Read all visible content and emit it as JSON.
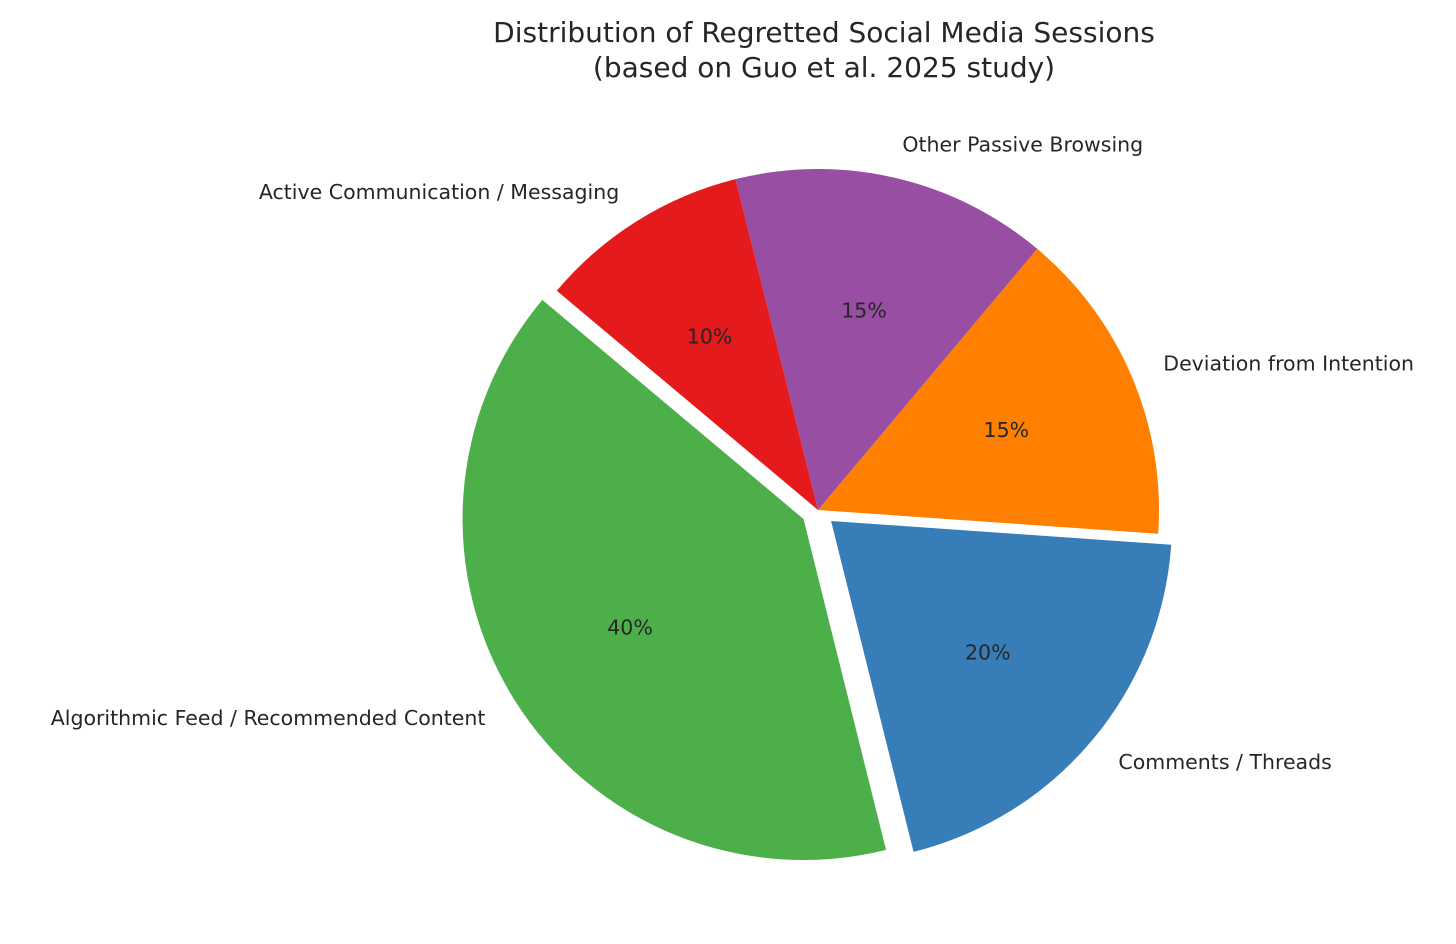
{
  "chart_data": {
    "type": "pie",
    "title": "Distribution of Regretted Social Media Sessions",
    "subtitle": "(based on Guo et al. 2025 study)",
    "categories": [
      "Algorithmic Feed / Recommended Content",
      "Comments / Threads",
      "Deviation from Intention",
      "Other Passive Browsing",
      "Active Communication / Messaging"
    ],
    "values": [
      40,
      20,
      15,
      15,
      10
    ],
    "value_labels": [
      "40%",
      "20%",
      "15%",
      "15%",
      "10%"
    ],
    "colors": [
      "#4daf4a",
      "#377eb8",
      "#ff7f00",
      "#984ea3",
      "#e41a1c"
    ],
    "exploded": [
      true,
      true,
      false,
      false,
      false
    ],
    "legend": "none",
    "grid": false
  }
}
